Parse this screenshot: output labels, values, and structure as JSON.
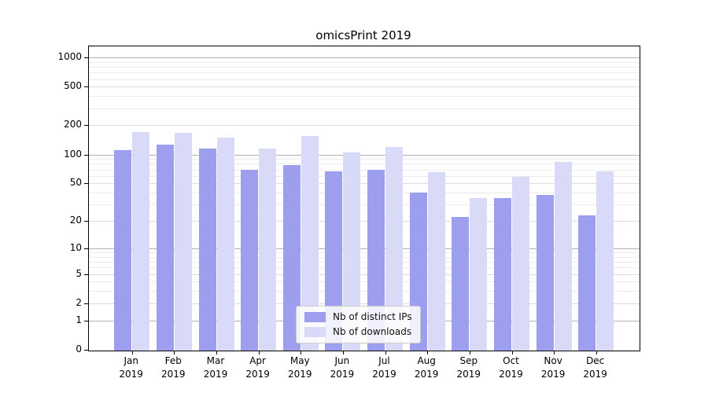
{
  "chart_data": {
    "type": "bar",
    "title": "omicsPrint 2019",
    "xlabel": "",
    "ylabel": "",
    "yscale": "symlog ln(1+x)",
    "ylim": [
      0,
      1300
    ],
    "grid": true,
    "legend_position": "bottom-center-inside",
    "categories": [
      {
        "label": "Jan",
        "year": "2019"
      },
      {
        "label": "Feb",
        "year": "2019"
      },
      {
        "label": "Mar",
        "year": "2019"
      },
      {
        "label": "Apr",
        "year": "2019"
      },
      {
        "label": "May",
        "year": "2019"
      },
      {
        "label": "Jun",
        "year": "2019"
      },
      {
        "label": "Jul",
        "year": "2019"
      },
      {
        "label": "Aug",
        "year": "2019"
      },
      {
        "label": "Sep",
        "year": "2019"
      },
      {
        "label": "Oct",
        "year": "2019"
      },
      {
        "label": "Nov",
        "year": "2019"
      },
      {
        "label": "Dec",
        "year": "2019"
      }
    ],
    "series": [
      {
        "name": "Nb of distinct IPs",
        "color": "#9e9eef",
        "values": [
          110,
          126,
          115,
          70,
          78,
          67,
          69,
          40,
          22,
          35,
          38,
          23
        ]
      },
      {
        "name": "Nb of downloads",
        "color": "#d9d9f8",
        "values": [
          170,
          167,
          151,
          116,
          154,
          105,
          119,
          66,
          35,
          58,
          83,
          67
        ]
      }
    ],
    "y_ticks": [
      {
        "label": "0",
        "value": 0
      },
      {
        "label": "1",
        "value": 1
      },
      {
        "label": "2",
        "value": 2
      },
      {
        "label": "5",
        "value": 5
      },
      {
        "label": "10",
        "value": 10
      },
      {
        "label": "20",
        "value": 20
      },
      {
        "label": "50",
        "value": 50
      },
      {
        "label": "100",
        "value": 100
      },
      {
        "label": "200",
        "value": 200
      },
      {
        "label": "500",
        "value": 500
      },
      {
        "label": "1000",
        "value": 1000
      }
    ],
    "y_major_gridlines": [
      1,
      10,
      100,
      1000
    ],
    "y_minor_gridlines": [
      3,
      4,
      6,
      7,
      8,
      9,
      30,
      40,
      60,
      70,
      80,
      90,
      300,
      400,
      600,
      700,
      800,
      900
    ]
  }
}
